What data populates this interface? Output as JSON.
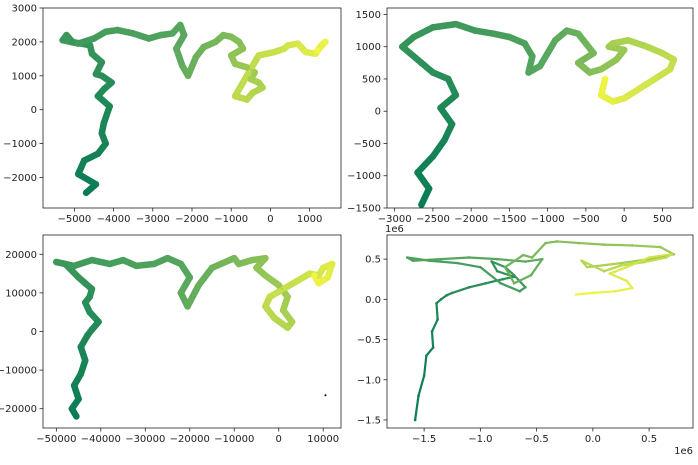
{
  "figure": {
    "colors": {
      "start": "#0a7c55",
      "mid": "#5aa85e",
      "end": "#f2f545"
    }
  },
  "chart_data": [
    {
      "type": "line",
      "title": "",
      "xlabel": "",
      "ylabel": "",
      "offset_text": "",
      "xlim": [
        -5800,
        1800
      ],
      "ylim": [
        -2900,
        3000
      ],
      "xticks": [
        -5000,
        -4000,
        -3000,
        -2000,
        -1000,
        0,
        1000
      ],
      "xtick_labels": [
        "−5000",
        "−4000",
        "−3000",
        "−2000",
        "−1000",
        "0",
        "1000"
      ],
      "yticks": [
        -2000,
        -1000,
        0,
        1000,
        2000,
        3000
      ],
      "ytick_labels": [
        "−2000",
        "−1000",
        "0",
        "1000",
        "2000",
        "3000"
      ],
      "grid": false,
      "series": [
        {
          "x": [
            -4700,
            -4450,
            -4900,
            -4750,
            -4400,
            -4200,
            -4300,
            -4250,
            -4100,
            -4400,
            -4250,
            -4050,
            -4300,
            -4450,
            -4300,
            -4550,
            -4600,
            -5050,
            -5200,
            -5300,
            -4900,
            -4500,
            -4200,
            -3900,
            -3500,
            -3100,
            -2800,
            -2500,
            -2300,
            -2200,
            -2400,
            -2250,
            -2100,
            -1900,
            -1700,
            -1400,
            -1200,
            -1000,
            -800,
            -700,
            -1000,
            -900,
            -600,
            -400,
            -500,
            -300,
            -200,
            -450,
            -600,
            -900,
            -300,
            100,
            350,
            450,
            700,
            900,
            1150,
            1300,
            1400,
            1200
          ],
          "y": [
            -2450,
            -2200,
            -1900,
            -1500,
            -1300,
            -1000,
            -700,
            -400,
            100,
            400,
            600,
            800,
            1000,
            1050,
            1400,
            1650,
            1900,
            2000,
            2200,
            2050,
            1950,
            2100,
            2300,
            2350,
            2250,
            2100,
            2200,
            2250,
            2500,
            2200,
            1800,
            1300,
            1000,
            1550,
            1850,
            2000,
            2200,
            2150,
            2000,
            1800,
            1600,
            1350,
            1250,
            1100,
            900,
            800,
            650,
            500,
            300,
            400,
            1600,
            1700,
            1800,
            1900,
            1950,
            1700,
            1650,
            1900,
            2000,
            1750
          ]
        }
      ]
    },
    {
      "type": "line",
      "title": "",
      "xlabel": "",
      "ylabel": "",
      "offset_text": "",
      "xlim": [
        -3100,
        900
      ],
      "ylim": [
        -1500,
        1600
      ],
      "xticks": [
        -3000,
        -2500,
        -2000,
        -1500,
        -1000,
        -500,
        0,
        500
      ],
      "xtick_labels": [
        "−3000",
        "−2500",
        "−2000",
        "−1500",
        "−1000",
        "−500",
        "0",
        "500"
      ],
      "yticks": [
        -1500,
        -1000,
        -500,
        0,
        500,
        1000,
        1500
      ],
      "ytick_labels": [
        "−1500",
        "−1000",
        "−500",
        "0",
        "500",
        "1000",
        "1500"
      ],
      "grid": false,
      "series": [
        {
          "x": [
            -2650,
            -2550,
            -2700,
            -2500,
            -2350,
            -2250,
            -2400,
            -2200,
            -2300,
            -2500,
            -2650,
            -2800,
            -2900,
            -2750,
            -2500,
            -2200,
            -1950,
            -1700,
            -1500,
            -1300,
            -1200,
            -1250,
            -1100,
            -900,
            -750,
            -600,
            -500,
            -400,
            -600,
            -450,
            -300,
            -100,
            0,
            -200,
            -150,
            50,
            300,
            500,
            650,
            600,
            400,
            200,
            0,
            -150,
            -300,
            -250
          ],
          "y": [
            -1450,
            -1200,
            -950,
            -700,
            -450,
            -200,
            50,
            250,
            500,
            600,
            750,
            900,
            1000,
            1150,
            1300,
            1350,
            1250,
            1200,
            1150,
            1050,
            850,
            600,
            700,
            1100,
            1250,
            1200,
            1050,
            900,
            750,
            600,
            650,
            800,
            950,
            1000,
            1050,
            1100,
            1000,
            900,
            800,
            650,
            500,
            350,
            200,
            150,
            250,
            500
          ]
        }
      ]
    },
    {
      "type": "line",
      "title": "",
      "xlabel": "",
      "ylabel": "",
      "offset_text": "",
      "xlim": [
        -53000,
        14000
      ],
      "ylim": [
        -25000,
        25000
      ],
      "xticks": [
        -50000,
        -40000,
        -30000,
        -20000,
        -10000,
        0,
        10000
      ],
      "xtick_labels": [
        "−50000",
        "−40000",
        "−30000",
        "−20000",
        "−10000",
        "0",
        "10000"
      ],
      "yticks": [
        -20000,
        -10000,
        0,
        10000,
        20000
      ],
      "ytick_labels": [
        "−20000",
        "−10000",
        "0",
        "10000",
        "20000"
      ],
      "grid": false,
      "series": [
        {
          "x": [
            -45500,
            -46500,
            -45000,
            -46000,
            -44500,
            -43500,
            -44500,
            -43000,
            -42000,
            -40500,
            -42500,
            -43500,
            -42500,
            -42000,
            -43500,
            -45000,
            -48000,
            -50000,
            -46000,
            -42000,
            -38000,
            -35000,
            -32000,
            -28000,
            -25000,
            -22000,
            -20000,
            -22000,
            -20500,
            -18000,
            -15000,
            -13000,
            -10000,
            -9000,
            -6000,
            -3000,
            -5000,
            -3000,
            0,
            2000,
            1000,
            3000,
            2000,
            -1000,
            -3000,
            -2000,
            4000,
            7000,
            9000,
            10000,
            12000,
            11000,
            9000,
            8000
          ],
          "y": [
            -22000,
            -20000,
            -17500,
            -14000,
            -11000,
            -7500,
            -4000,
            -1000,
            500,
            2500,
            5000,
            7500,
            9000,
            11000,
            12500,
            14000,
            17500,
            18000,
            17000,
            18500,
            17500,
            18500,
            17000,
            17500,
            19000,
            17500,
            14000,
            10000,
            6500,
            12000,
            16500,
            17500,
            19000,
            17500,
            18500,
            19000,
            16500,
            14500,
            12000,
            9000,
            5500,
            2500,
            1000,
            3500,
            6500,
            9000,
            13000,
            15000,
            14500,
            16500,
            17500,
            14000,
            12500,
            14500
          ]
        }
      ],
      "stray_point": {
        "x": 10500,
        "y": -16500
      }
    },
    {
      "type": "line",
      "title": "",
      "xlabel": "",
      "ylabel": "",
      "offset_text": "1e6",
      "xlim": [
        -1830000,
        890000
      ],
      "ylim": [
        -1600000,
        800000
      ],
      "xticks": [
        -1500000,
        -1000000,
        -500000,
        0,
        500000
      ],
      "xtick_labels": [
        "−1.5",
        "−1.0",
        "−0.5",
        "0.0",
        "0.5"
      ],
      "yticks": [
        -1500000,
        -1000000,
        -500000,
        0,
        500000
      ],
      "ytick_labels": [
        "−1.5",
        "−1.0",
        "−0.5",
        "0.0",
        "0.5"
      ],
      "grid": false,
      "series": [
        {
          "x": [
            -1580000,
            -1550000,
            -1500000,
            -1480000,
            -1420000,
            -1430000,
            -1380000,
            -1390000,
            -1350000,
            -1300000,
            -1250000,
            -1100000,
            -950000,
            -800000,
            -700000,
            -850000,
            -900000,
            -780000,
            -700000,
            -600000,
            -650000,
            -820000,
            -1000000,
            -1200000,
            -1450000,
            -1650000,
            -1600000,
            -1350000,
            -1100000,
            -850000,
            -600000,
            -450000,
            -550000,
            -700000,
            -780000,
            -620000,
            -540000,
            -420000,
            -320000,
            -120000,
            100000,
            350000,
            600000,
            720000,
            500000,
            250000,
            -50000,
            -100000,
            100000,
            250000,
            450000,
            650000,
            700000,
            500000,
            300000,
            150000,
            300000,
            350000,
            200000,
            0,
            -150000
          ],
          "y": [
            -1500000,
            -1200000,
            -950000,
            -700000,
            -600000,
            -400000,
            -250000,
            -50000,
            0,
            50000,
            80000,
            150000,
            200000,
            250000,
            280000,
            350000,
            470000,
            400000,
            300000,
            150000,
            100000,
            200000,
            400000,
            450000,
            480000,
            520000,
            480000,
            500000,
            520000,
            500000,
            470000,
            500000,
            300000,
            200000,
            400000,
            550000,
            520000,
            700000,
            720000,
            700000,
            680000,
            670000,
            650000,
            560000,
            500000,
            450000,
            400000,
            480000,
            350000,
            420000,
            460000,
            520000,
            560000,
            520000,
            400000,
            320000,
            230000,
            140000,
            100000,
            80000,
            60000
          ]
        }
      ]
    }
  ]
}
